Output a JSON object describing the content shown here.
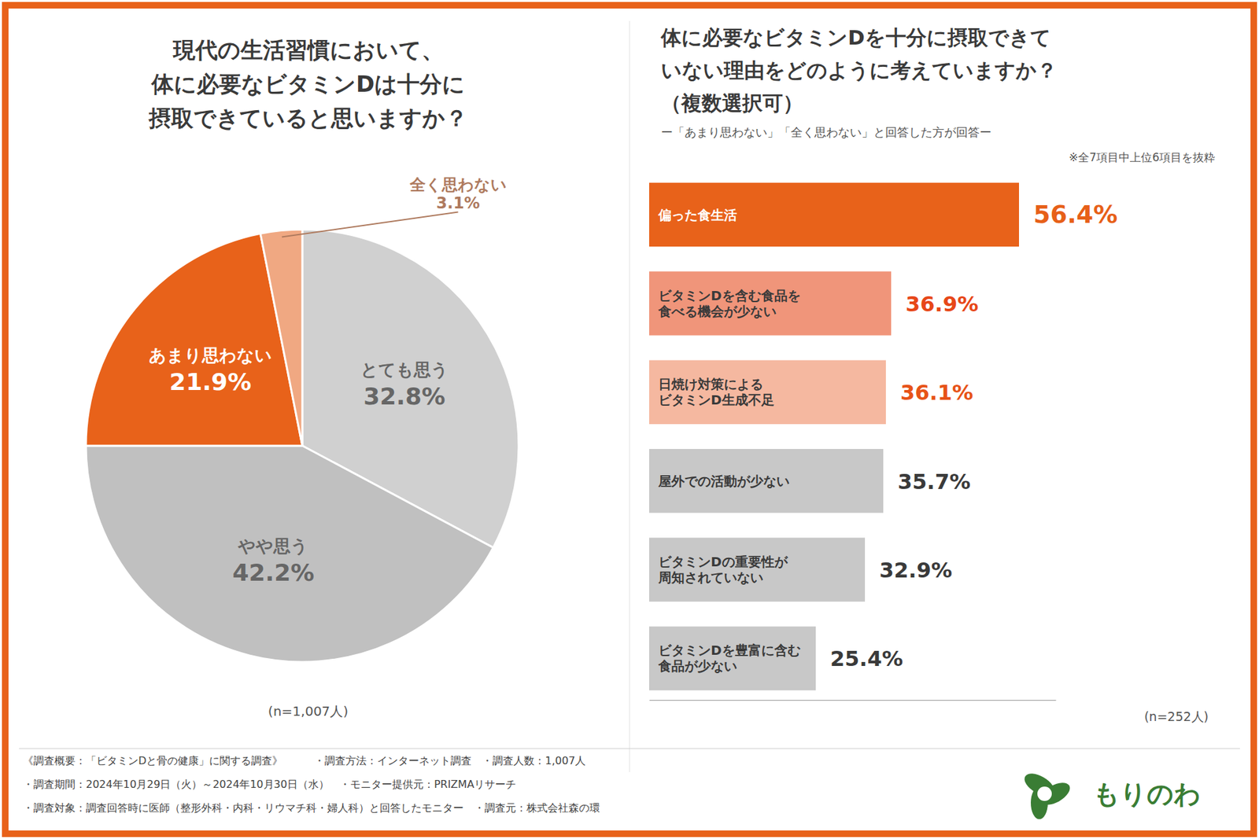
{
  "chart_data": [
    {
      "type": "pie",
      "title": [
        "現代の生活習慣において、",
        "体に必要なビタミンDは十分に",
        "摂取できていると思いますか？"
      ],
      "categories": [
        "とても思う",
        "やや思う",
        "あまり思わない",
        "全く思わない"
      ],
      "values": [
        32.8,
        42.2,
        21.9,
        3.1
      ],
      "value_labels": [
        "32.8%",
        "42.2%",
        "21.9%",
        "3.1%"
      ],
      "colors": [
        "#d0d0d0",
        "#c0c0c0",
        "#E8621A",
        "#f0a882"
      ],
      "data_labels": true,
      "annotations": [
        "(n=1,007人)"
      ]
    },
    {
      "type": "bar",
      "orientation": "horizontal",
      "title": [
        "体に必要なビタミンDを十分に摂取できて",
        "いない理由をどのように考えていますか？",
        "（複数選択可）"
      ],
      "subtitle": [
        "ー「あまり思わない」「全く思わない」と回答した方が回答ー",
        "※全7項目中上位6項目を抜粋"
      ],
      "categories": [
        "偏った食生活",
        "ビタミンDを含む食品を\n食べる機会が少ない",
        "日焼け対策による\nビタミンD生成不足",
        "屋外での活動が少ない",
        "ビタミンDの重要性が\n周知されていない",
        "ビタミンDを豊富に含む\n食品が少ない"
      ],
      "values": [
        56.4,
        36.9,
        36.1,
        35.7,
        32.9,
        25.4
      ],
      "value_labels": [
        "56.4%",
        "36.9%",
        "36.1%",
        "35.7%",
        "32.9%",
        "25.4%"
      ],
      "colors": [
        "#E8621A",
        "#f0957a",
        "#f5b8a0",
        "#c8c8c8",
        "#c8c8c8",
        "#c8c8c8"
      ],
      "xlim": [
        0,
        62
      ],
      "tick_labels": false,
      "data_labels": true,
      "annotations": [
        "(n=252人)"
      ]
    }
  ],
  "footer": [
    "《調査概要：「ビタミンDと骨の健康」に関する調査》　　　・調査方法：インターネット調査　・調査人数：1,007人",
    "・調査期間：2024年10月29日（火）～2024年10月30日（水）　・モニター提供元：PRIZMAリサーチ",
    "・調査対象：調査回答時に医師（整形外科・内科・リウマチ科・婦人科）と回答したモニター　・調査元：株式会社森の環"
  ],
  "logo": {
    "text": "もりのわ",
    "color": "#3a7d34"
  }
}
